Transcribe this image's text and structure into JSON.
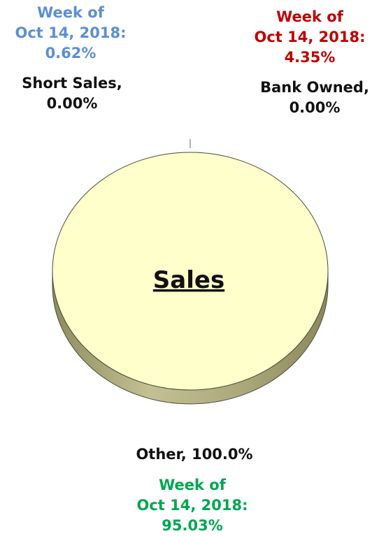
{
  "chart_data": {
    "type": "pie",
    "title": "Sales",
    "slices": [
      {
        "label": "Short Sales",
        "value": 0.0,
        "value_text": "Short Sales,",
        "pct_text": "0.00%",
        "week_label": "Week of",
        "week_date": "Oct 14, 2018:",
        "week_value": "0.62%",
        "week_color": "#5b8fd4"
      },
      {
        "label": "Bank Owned",
        "value": 0.0,
        "value_text": "Bank Owned,",
        "pct_text": "0.00%",
        "week_label": "Week of",
        "week_date": "Oct 14, 2018:",
        "week_value": "4.35%",
        "week_color": "#c00000"
      },
      {
        "label": "Other",
        "value": 100.0,
        "value_text": "Other, 100.0%",
        "week_label": "Week of",
        "week_date": "Oct 14, 2018:",
        "week_value": "95.03%",
        "week_color": "#00a651"
      }
    ],
    "colors": {
      "top": "#ffffcc",
      "side": "#a7a577",
      "edge": "#4a4a3a"
    },
    "style": "3d"
  }
}
